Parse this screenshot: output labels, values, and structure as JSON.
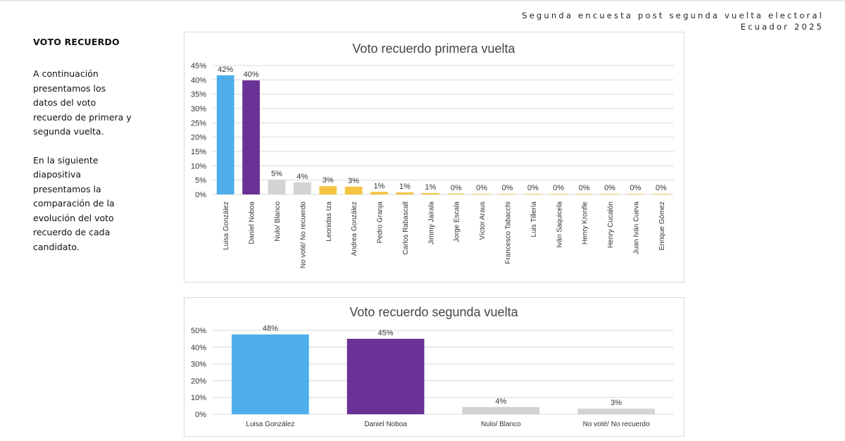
{
  "header": {
    "line1": "Segunda encuesta post segunda vuelta electoral",
    "line2": "Ecuador 2025"
  },
  "sidebar": {
    "title": "VOTO RECUERDO",
    "paragraph1": "A continuación presentamos los datos del voto recuerdo de primera y segunda vuelta.",
    "paragraph2": "En la siguiente diapositiva presentamos la comparación de la evolución del voto recuerdo de cada candidato."
  },
  "colors": {
    "gonzalez": "#4DAEEA",
    "noboa": "#6A3196",
    "gray": "#D3D3D3",
    "yellow": "#F5C342"
  },
  "chart_data": [
    {
      "type": "bar",
      "title": "Voto recuerdo primera vuelta",
      "categories": [
        "Luisa González",
        "Daniel Noboa",
        "Nulo/ Blanco",
        "No voté/ No recuerdo",
        "Leonidas Iza",
        "Andrea González",
        "Pedro Granja",
        "Carlos Rabascall",
        "Jimmy Jairala",
        "Jorge Escala",
        "Víctor Araus",
        "Francesco Tabacchi",
        "Luis Tillería",
        "Iván Saquicela",
        "Henry Kronfle",
        "Henry Cucalón",
        "Juan Iván Cueva",
        "Enrique Gómez"
      ],
      "values": [
        41.6,
        39.8,
        5.2,
        4.2,
        2.9,
        2.7,
        0.9,
        0.7,
        0.5,
        0.3,
        0.2,
        0.2,
        0.1,
        0.1,
        0.1,
        0.1,
        0.1,
        0.1
      ],
      "data_labels": [
        "42%",
        "40%",
        "5%",
        "4%",
        "3%",
        "3%",
        "1%",
        "1%",
        "1%",
        "0%",
        "0%",
        "0%",
        "0%",
        "0%",
        "0%",
        "0%",
        "0%",
        "0%"
      ],
      "bar_colors": [
        "#4DAEEA",
        "#6A3196",
        "#D3D3D3",
        "#D3D3D3",
        "#F5C342",
        "#F5C342",
        "#F5C342",
        "#F5C342",
        "#F5C342",
        "#F5C342",
        "#F5C342",
        "#F5C342",
        "#F5C342",
        "#F5C342",
        "#F5C342",
        "#F5C342",
        "#F5C342",
        "#F5C342"
      ],
      "ylim": [
        0,
        45
      ],
      "ytick_step": 5,
      "ytick_labels": [
        "0%",
        "5%",
        "10%",
        "15%",
        "20%",
        "25%",
        "30%",
        "35%",
        "40%",
        "45%"
      ],
      "grid": true,
      "xlabel": "",
      "ylabel": ""
    },
    {
      "type": "bar",
      "title": "Voto recuerdo segunda vuelta",
      "categories": [
        "Luisa González",
        "Daniel Noboa",
        "Nulo/ Blanco",
        "No voté/ No recuerdo"
      ],
      "values": [
        47.6,
        45.0,
        4.3,
        3.3
      ],
      "data_labels": [
        "48%",
        "45%",
        "4%",
        "3%"
      ],
      "bar_colors": [
        "#4DAEEA",
        "#6A3196",
        "#D3D3D3",
        "#D3D3D3"
      ],
      "ylim": [
        0,
        50
      ],
      "ytick_step": 10,
      "ytick_labels": [
        "0%",
        "10%",
        "20%",
        "30%",
        "40%",
        "50%"
      ],
      "grid": true,
      "xlabel": "",
      "ylabel": ""
    }
  ]
}
